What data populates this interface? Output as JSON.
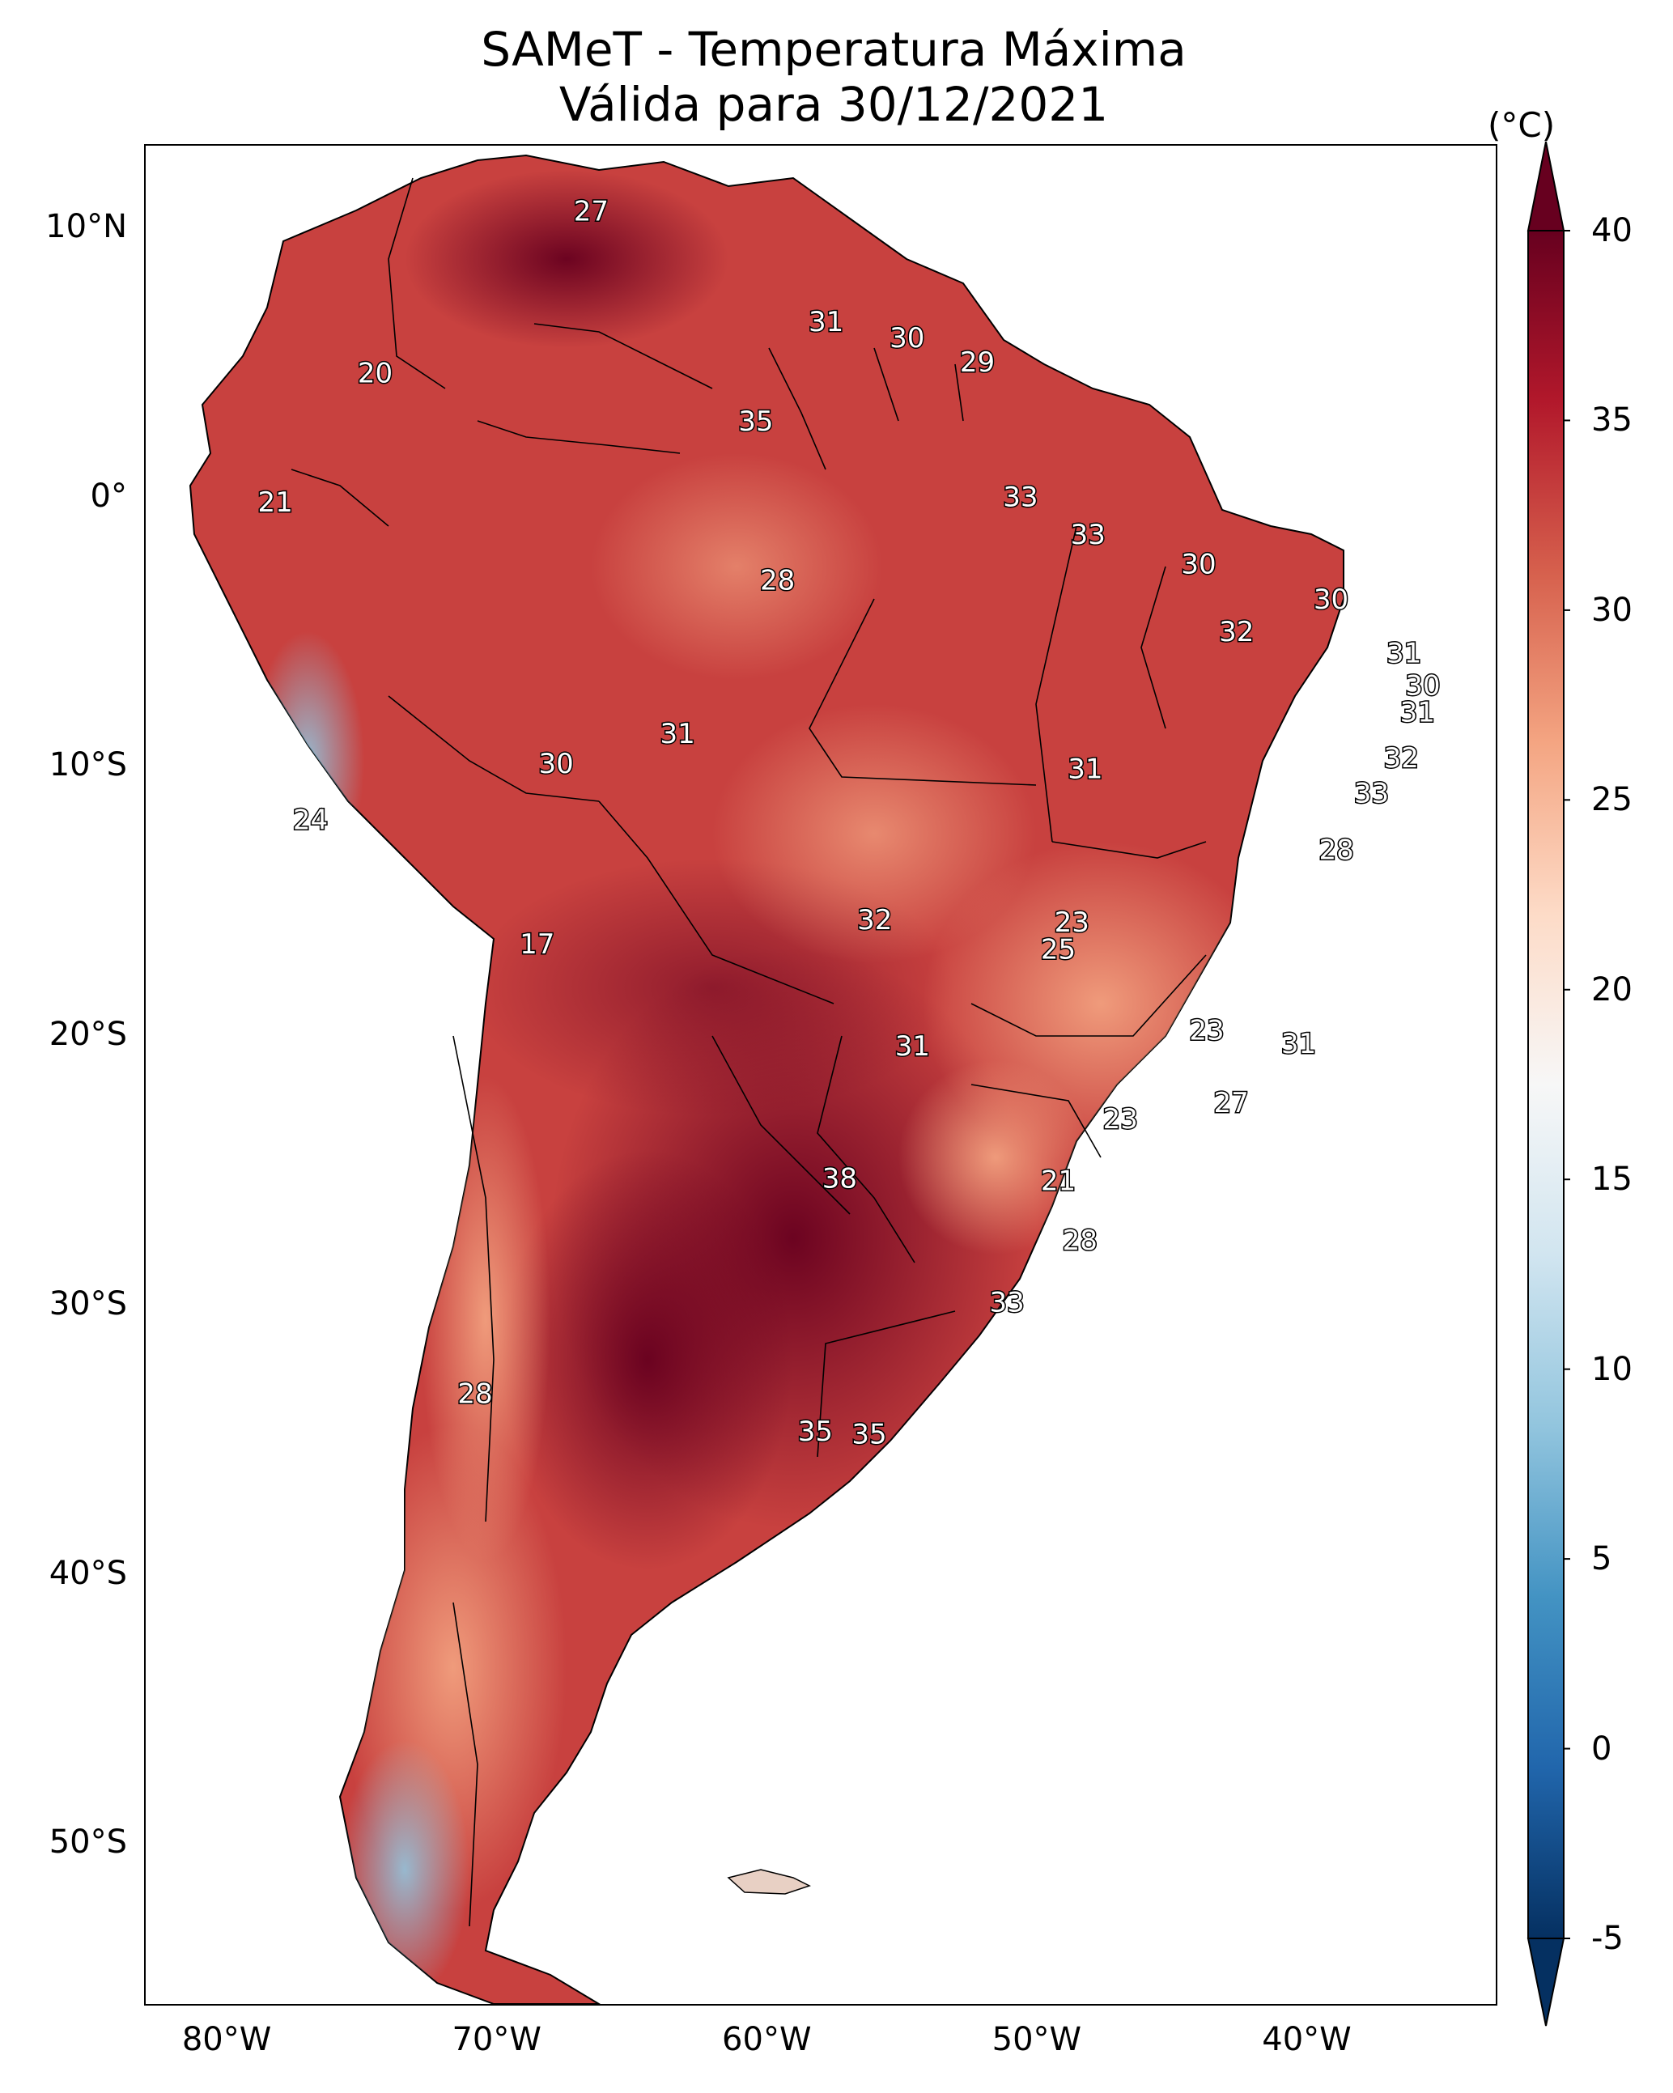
{
  "title_line1": "SAMeT - Temperatura Máxima",
  "title_line2": "Válida para 30/12/2021",
  "colorbar": {
    "unit": "(°C)",
    "min": -5,
    "max": 40,
    "ticks": [
      "40",
      "35",
      "30",
      "25",
      "20",
      "15",
      "10",
      "5",
      "0",
      "-5"
    ],
    "extend": "both",
    "colors": [
      "#053061",
      "#2166ac",
      "#4393c3",
      "#92c5de",
      "#d1e5f0",
      "#f7f7f7",
      "#fddbc7",
      "#f4a582",
      "#d6604d",
      "#b2182b",
      "#67001f"
    ]
  },
  "axes": {
    "lon_labels": [
      "80°W",
      "70°W",
      "60°W",
      "50°W",
      "40°W"
    ],
    "lat_labels": [
      "10°N",
      "0°",
      "10°S",
      "20°S",
      "30°S",
      "40°S",
      "50°S"
    ]
  },
  "map_values": [
    {
      "text": "27",
      "lon": -66.5,
      "lat": 10.5
    },
    {
      "text": "20",
      "lon": -74.5,
      "lat": 4.5
    },
    {
      "text": "31",
      "lon": -57.8,
      "lat": 6.4
    },
    {
      "text": "30",
      "lon": -54.8,
      "lat": 5.8
    },
    {
      "text": "29",
      "lon": -52.2,
      "lat": 4.9
    },
    {
      "text": "35",
      "lon": -60.4,
      "lat": 2.7
    },
    {
      "text": "21",
      "lon": -78.2,
      "lat": -0.3
    },
    {
      "text": "33",
      "lon": -50.6,
      "lat": -0.1
    },
    {
      "text": "33",
      "lon": -48.1,
      "lat": -1.5
    },
    {
      "text": "28",
      "lon": -59.6,
      "lat": -3.2
    },
    {
      "text": "30",
      "lon": -44.0,
      "lat": -2.6
    },
    {
      "text": "32",
      "lon": -42.6,
      "lat": -5.1
    },
    {
      "text": "30",
      "lon": -39.1,
      "lat": -3.9
    },
    {
      "text": "31",
      "lon": -36.4,
      "lat": -5.9
    },
    {
      "text": "30",
      "lon": -35.7,
      "lat": -7.1
    },
    {
      "text": "31",
      "lon": -35.9,
      "lat": -8.1
    },
    {
      "text": "31",
      "lon": -63.3,
      "lat": -8.9
    },
    {
      "text": "30",
      "lon": -67.8,
      "lat": -10.0
    },
    {
      "text": "31",
      "lon": -48.2,
      "lat": -10.2
    },
    {
      "text": "32",
      "lon": -36.5,
      "lat": -9.8
    },
    {
      "text": "33",
      "lon": -37.6,
      "lat": -11.1
    },
    {
      "text": "24",
      "lon": -76.9,
      "lat": -12.1
    },
    {
      "text": "28",
      "lon": -38.9,
      "lat": -13.2
    },
    {
      "text": "32",
      "lon": -56.0,
      "lat": -15.8
    },
    {
      "text": "23",
      "lon": -48.7,
      "lat": -15.9
    },
    {
      "text": "25",
      "lon": -49.2,
      "lat": -16.9
    },
    {
      "text": "17",
      "lon": -68.5,
      "lat": -16.7
    },
    {
      "text": "23",
      "lon": -43.7,
      "lat": -19.9
    },
    {
      "text": "31",
      "lon": -40.3,
      "lat": -20.4
    },
    {
      "text": "31",
      "lon": -54.6,
      "lat": -20.5
    },
    {
      "text": "27",
      "lon": -42.8,
      "lat": -22.6
    },
    {
      "text": "23",
      "lon": -46.9,
      "lat": -23.2
    },
    {
      "text": "38",
      "lon": -57.3,
      "lat": -25.4
    },
    {
      "text": "21",
      "lon": -49.2,
      "lat": -25.5
    },
    {
      "text": "28",
      "lon": -48.4,
      "lat": -27.7
    },
    {
      "text": "33",
      "lon": -51.1,
      "lat": -30.0
    },
    {
      "text": "28",
      "lon": -70.8,
      "lat": -33.4
    },
    {
      "text": "35",
      "lon": -58.2,
      "lat": -34.8
    },
    {
      "text": "35",
      "lon": -56.2,
      "lat": -34.9
    }
  ]
}
